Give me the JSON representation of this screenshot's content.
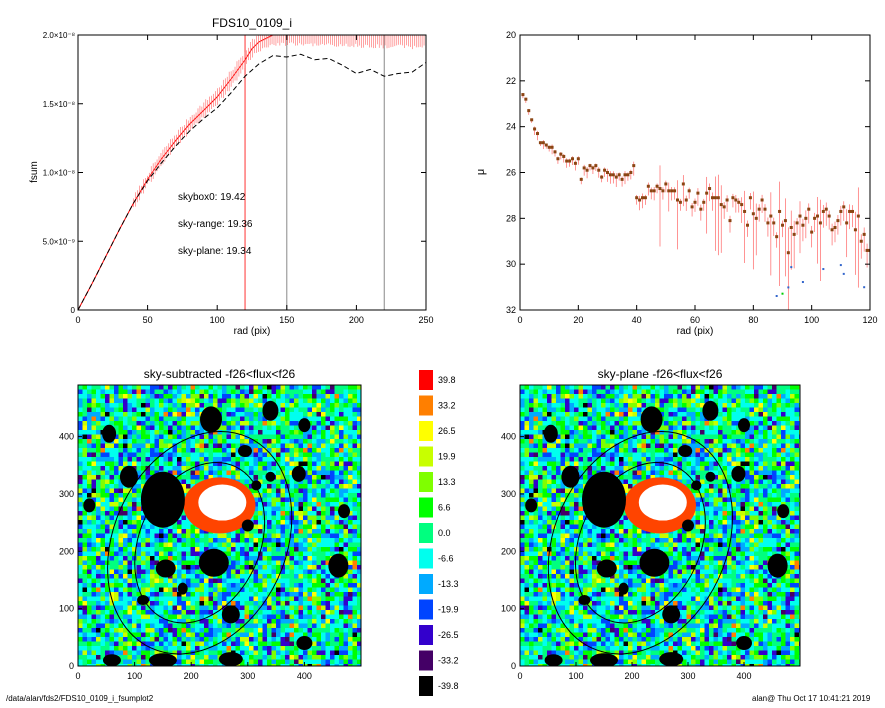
{
  "footer": {
    "path": "/data/alan/fds2/FDS10_0109_i_fsumplot2",
    "stamp": "alan@  Thu Oct 17 10:41:21 2019"
  },
  "chart_data": [
    {
      "type": "line",
      "title": "FDS10_0109_i",
      "xlabel": "rad (pix)",
      "ylabel": "fsum",
      "xlim": [
        0,
        250
      ],
      "ylim": [
        0,
        2e-08
      ],
      "xticks": [
        0,
        50,
        100,
        150,
        200,
        250
      ],
      "yticks": [
        {
          "v": 0,
          "label": "0"
        },
        {
          "v": 5e-09,
          "label": "5.0×10⁻⁹"
        },
        {
          "v": 1e-08,
          "label": "1.0×10⁻⁸"
        },
        {
          "v": 1.5e-08,
          "label": "1.5×10⁻⁸"
        },
        {
          "v": 2e-08,
          "label": "2.0×10⁻⁸"
        }
      ],
      "annotations": [
        {
          "text": "skybox0: 19.42",
          "color": "#000000"
        },
        {
          "text": "sky-range: 19.36",
          "color": "#ff0000"
        },
        {
          "text": "sky-plane: 19.34",
          "color": "#00ee00"
        }
      ],
      "vlines": [
        {
          "x": 120,
          "color": "#ff3333"
        },
        {
          "x": 150,
          "color": "#888888"
        },
        {
          "x": 220,
          "color": "#888888"
        }
      ],
      "series": [
        {
          "color": "#ff0000",
          "style": "solid-errorbars",
          "x": [
            0,
            10,
            20,
            30,
            40,
            50,
            60,
            70,
            80,
            90,
            100,
            110,
            120,
            125,
            130,
            140,
            150,
            160,
            170,
            180,
            190,
            200,
            210,
            220,
            230,
            240,
            250
          ],
          "y": [
            0,
            1.9e-09,
            3.9e-09,
            5.9e-09,
            7.8e-09,
            9.5e-09,
            1.1e-08,
            1.23e-08,
            1.35e-08,
            1.45e-08,
            1.55e-08,
            1.68e-08,
            1.82e-08,
            1.9e-08,
            1.95e-08,
            2e-08,
            2e-08,
            2e-08,
            2e-08,
            2e-08,
            2e-08,
            2e-08,
            2e-08,
            2e-08,
            2e-08,
            2e-08,
            2e-08
          ]
        },
        {
          "color": "#000000",
          "style": "dashed",
          "x": [
            0,
            10,
            20,
            30,
            40,
            50,
            60,
            70,
            80,
            90,
            100,
            110,
            120,
            130,
            140,
            150,
            160,
            170,
            180,
            190,
            200,
            210,
            220,
            230,
            240,
            250
          ],
          "y": [
            0,
            1.9e-09,
            3.9e-09,
            5.9e-09,
            7.8e-09,
            9.4e-09,
            1.07e-08,
            1.19e-08,
            1.3e-08,
            1.39e-08,
            1.47e-08,
            1.58e-08,
            1.7e-08,
            1.79e-08,
            1.85e-08,
            1.84e-08,
            1.86e-08,
            1.82e-08,
            1.83e-08,
            1.78e-08,
            1.72e-08,
            1.75e-08,
            1.7e-08,
            1.72e-08,
            1.73e-08,
            1.8e-08
          ]
        }
      ]
    },
    {
      "type": "scatter",
      "xlabel": "rad (pix)",
      "ylabel": "μ",
      "xlim": [
        0,
        120
      ],
      "ylim": [
        32,
        20
      ],
      "xticks": [
        0,
        20,
        40,
        60,
        80,
        100,
        120
      ],
      "yticks": [
        20,
        22,
        24,
        26,
        28,
        30,
        32
      ],
      "series": [
        {
          "color": "#8b4513",
          "x": [
            1,
            2,
            3,
            4,
            5,
            6,
            7,
            8,
            9,
            10,
            11,
            12,
            13,
            14,
            15,
            16,
            17,
            18,
            19,
            20,
            21,
            22,
            23,
            24,
            25,
            26,
            27,
            28,
            29,
            30,
            31,
            32,
            33,
            34,
            35,
            36,
            37,
            38,
            39,
            40,
            41,
            42,
            43,
            44,
            45,
            46,
            47,
            48,
            49,
            50,
            51,
            52,
            53,
            54,
            55,
            56,
            57,
            58,
            59,
            60,
            61,
            62,
            63,
            64,
            65,
            66,
            67,
            68,
            69,
            70,
            71,
            72,
            73,
            74,
            75,
            76,
            77,
            78,
            79,
            80,
            81,
            82,
            83,
            84,
            85,
            86,
            87,
            88,
            89,
            90,
            91,
            92,
            93,
            94,
            95,
            96,
            97,
            98,
            99,
            100,
            101,
            102,
            103,
            104,
            105,
            106,
            107,
            108,
            109,
            110,
            111,
            112,
            113,
            114,
            115,
            116,
            117,
            118,
            119,
            120
          ],
          "y": [
            22.6,
            22.8,
            23.3,
            23.7,
            24.1,
            24.3,
            24.7,
            24.7,
            24.8,
            24.9,
            24.9,
            25.1,
            25.4,
            25.2,
            25.3,
            25.5,
            25.5,
            25.4,
            25.6,
            25.4,
            26.3,
            25.8,
            25.9,
            25.7,
            25.8,
            25.7,
            25.9,
            26.2,
            25.9,
            26.0,
            26.1,
            26.1,
            26.2,
            26.1,
            26.3,
            26.1,
            26.1,
            26.0,
            25.7,
            27.1,
            27.2,
            27.1,
            27.1,
            26.6,
            26.8,
            26.8,
            26.6,
            26.7,
            26.8,
            26.5,
            26.8,
            26.8,
            26.8,
            27.2,
            27.3,
            26.5,
            27.2,
            26.8,
            27.5,
            27.3,
            26.9,
            27.6,
            27.3,
            26.9,
            26.7,
            27.1,
            27.1,
            27.1,
            27.4,
            27.5,
            27.2,
            28.1,
            27.1,
            27.2,
            27.3,
            27.4,
            27.7,
            28.3,
            27.1,
            27.8,
            28.0,
            27.6,
            27.2,
            27.6,
            28.2,
            27.9,
            28.2,
            28.8,
            27.7,
            28.3,
            28.1,
            29.5,
            28.4,
            28.7,
            28.2,
            27.9,
            28.3,
            28.0,
            27.6,
            28.6,
            28.0,
            27.9,
            28.2,
            27.7,
            27.6,
            27.9,
            28.5,
            28.4,
            28.1,
            27.7,
            27.5,
            28.2,
            27.7,
            27.7,
            28.5,
            27.9,
            29.0,
            28.7,
            29.4,
            29.4
          ]
        }
      ]
    },
    {
      "type": "heatmap",
      "title": "sky-subtracted -f26<flux<f26",
      "xlim": [
        0,
        500
      ],
      "ylim": [
        0,
        490
      ],
      "xticks": [
        0,
        100,
        200,
        300,
        400
      ],
      "yticks": [
        0,
        100,
        200,
        300,
        400
      ]
    },
    {
      "type": "heatmap",
      "title": "sky-plane -f26<flux<f26",
      "xlim": [
        0,
        500
      ],
      "ylim": [
        0,
        490
      ],
      "xticks": [
        0,
        100,
        200,
        300,
        400
      ],
      "yticks": [
        0,
        100,
        200,
        300,
        400
      ]
    },
    {
      "type": "colorbar",
      "levels": [
        {
          "label": "39.8",
          "color": "#ff0000"
        },
        {
          "label": "33.2",
          "color": "#ff7f00"
        },
        {
          "label": "26.5",
          "color": "#ffff00"
        },
        {
          "label": "19.9",
          "color": "#c8ff00"
        },
        {
          "label": "13.3",
          "color": "#7fff00"
        },
        {
          "label": "6.6",
          "color": "#00ff00"
        },
        {
          "label": "0.0",
          "color": "#00ff7f"
        },
        {
          "label": "-6.6",
          "color": "#00ffee"
        },
        {
          "label": "-13.3",
          "color": "#00aaff"
        },
        {
          "label": "-19.9",
          "color": "#0044ff"
        },
        {
          "label": "-26.5",
          "color": "#3300cc"
        },
        {
          "label": "-33.2",
          "color": "#440066"
        },
        {
          "label": "-39.8",
          "color": "#000000"
        }
      ]
    }
  ]
}
